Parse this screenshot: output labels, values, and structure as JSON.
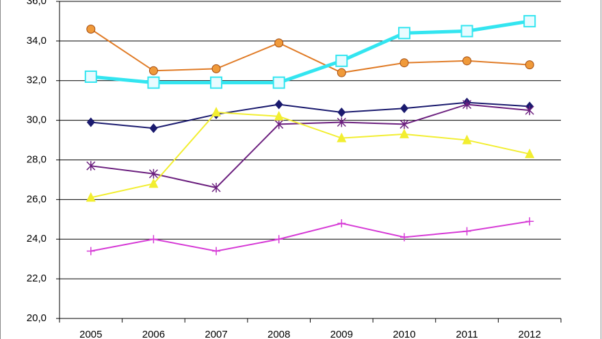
{
  "chart_data": {
    "type": "line",
    "categories": [
      "2005",
      "2006",
      "2007",
      "2008",
      "2009",
      "2010",
      "2011",
      "2012"
    ],
    "series": [
      {
        "color": "#e07b26",
        "marker": "circle",
        "values": [
          34.6,
          32.5,
          32.6,
          33.9,
          32.4,
          32.9,
          33.0,
          32.8
        ]
      },
      {
        "color": "#33e5f0",
        "marker": "square",
        "values": [
          32.2,
          31.9,
          31.9,
          31.9,
          33.0,
          34.4,
          34.5,
          35.0
        ]
      },
      {
        "color": "#1a1a6e",
        "marker": "diamond",
        "values": [
          29.9,
          29.6,
          30.3,
          30.8,
          30.4,
          30.6,
          30.9,
          30.7
        ]
      },
      {
        "color": "#6b1f7e",
        "marker": "asterisk",
        "values": [
          27.7,
          27.3,
          26.6,
          29.8,
          29.9,
          29.8,
          30.8,
          30.5
        ]
      },
      {
        "color": "#f2ee30",
        "marker": "triangle",
        "values": [
          26.1,
          26.8,
          30.4,
          30.2,
          29.1,
          29.3,
          29.0,
          28.3
        ]
      },
      {
        "color": "#d63ad6",
        "marker": "plus",
        "values": [
          23.4,
          24.0,
          23.4,
          24.0,
          24.8,
          24.1,
          24.4,
          24.9
        ]
      }
    ],
    "ylim": [
      20,
      36
    ],
    "yticks": [
      {
        "value": 20,
        "label": "20,0"
      },
      {
        "value": 22,
        "label": "22,0"
      },
      {
        "value": 24,
        "label": "24,0"
      },
      {
        "value": 26,
        "label": "26,0"
      },
      {
        "value": 28,
        "label": "28,0"
      },
      {
        "value": 30,
        "label": "30,0"
      },
      {
        "value": 32,
        "label": "32,0"
      },
      {
        "value": 34,
        "label": "34,0"
      },
      {
        "value": 36,
        "label": "36,0"
      }
    ],
    "grid": true
  }
}
